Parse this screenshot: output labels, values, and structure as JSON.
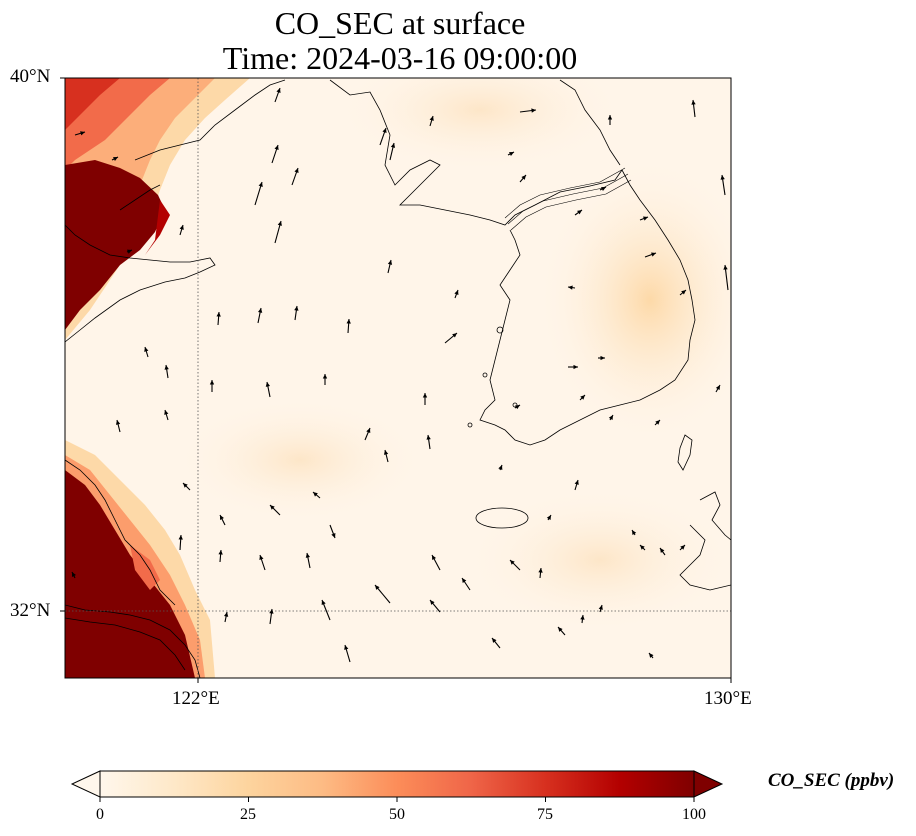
{
  "title": {
    "line1": "CO_SEC at surface",
    "line2": "Time: 2024-03-16 09:00:00"
  },
  "map": {
    "region": "Yellow Sea / Korean Peninsula",
    "lat_range": [
      31,
      40
    ],
    "lon_range": [
      120,
      130
    ],
    "lat_ticks": [
      "40°N",
      "32°N"
    ],
    "lon_ticks": [
      "122°E",
      "130°E"
    ],
    "gridlines": "dotted at 122°E and 32°N",
    "field": "CO_SEC concentration, high (>100 ppbv) along the western edge (Chinese coast), low elsewhere, moderate plume over Korean Peninsula",
    "vectors": "black wind arrows, mostly pointing north/north-northwest over the sea"
  },
  "colorbar": {
    "label": "CO_SEC (ppbv)",
    "ticks": [
      "0",
      "25",
      "50",
      "75",
      "100"
    ],
    "min": 0,
    "max": 100,
    "extend": "both",
    "colormap": "OrRd",
    "colors": [
      "#fff7ec",
      "#fee8c8",
      "#fdd49e",
      "#fdbb84",
      "#fc8d59",
      "#ef6548",
      "#d7301f",
      "#b30000",
      "#7f0000"
    ]
  }
}
